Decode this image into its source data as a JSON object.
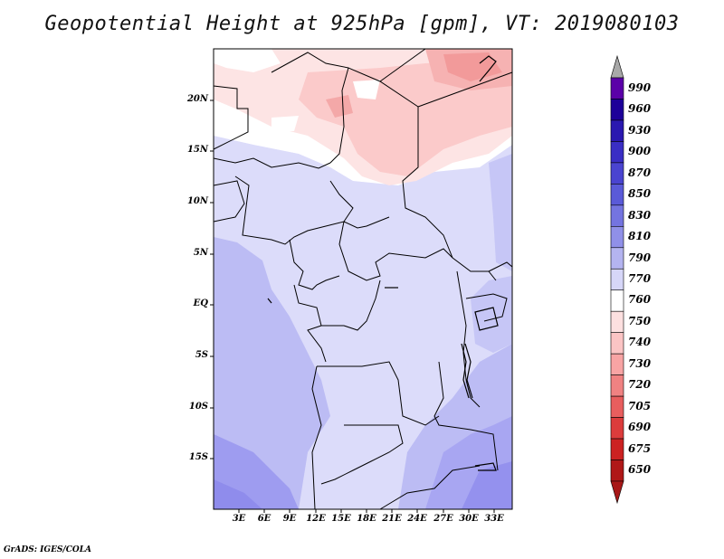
{
  "title": "Geopotential Height at 925hPa [gpm], VT: 2019080103",
  "footer": "GrADS: IGES/COLA",
  "map": {
    "lat_labels": [
      "20N",
      "15N",
      "10N",
      "5N",
      "EQ",
      "5S",
      "10S",
      "15S"
    ],
    "lon_labels": [
      "3E",
      "6E",
      "9E",
      "12E",
      "15E",
      "18E",
      "21E",
      "24E",
      "27E",
      "30E",
      "33E"
    ]
  },
  "colorbar": {
    "levels": [
      "990",
      "960",
      "930",
      "900",
      "870",
      "850",
      "830",
      "810",
      "790",
      "770",
      "760",
      "750",
      "740",
      "730",
      "720",
      "705",
      "690",
      "675",
      "650"
    ],
    "colors": [
      "#5b00a8",
      "#1d0099",
      "#2a18b0",
      "#3a2ec4",
      "#4a44d0",
      "#5a5ad8",
      "#7474e0",
      "#9090e8",
      "#b4b4f0",
      "#d6d6f8",
      "#ffffff",
      "#fde0e0",
      "#fbc4c4",
      "#f8a4a4",
      "#f08282",
      "#e85e5e",
      "#dc3c3c",
      "#cc2222",
      "#b01818"
    ],
    "top_arrow_color": "#a8a8a8",
    "bottom_arrow_color": "#a81818"
  }
}
